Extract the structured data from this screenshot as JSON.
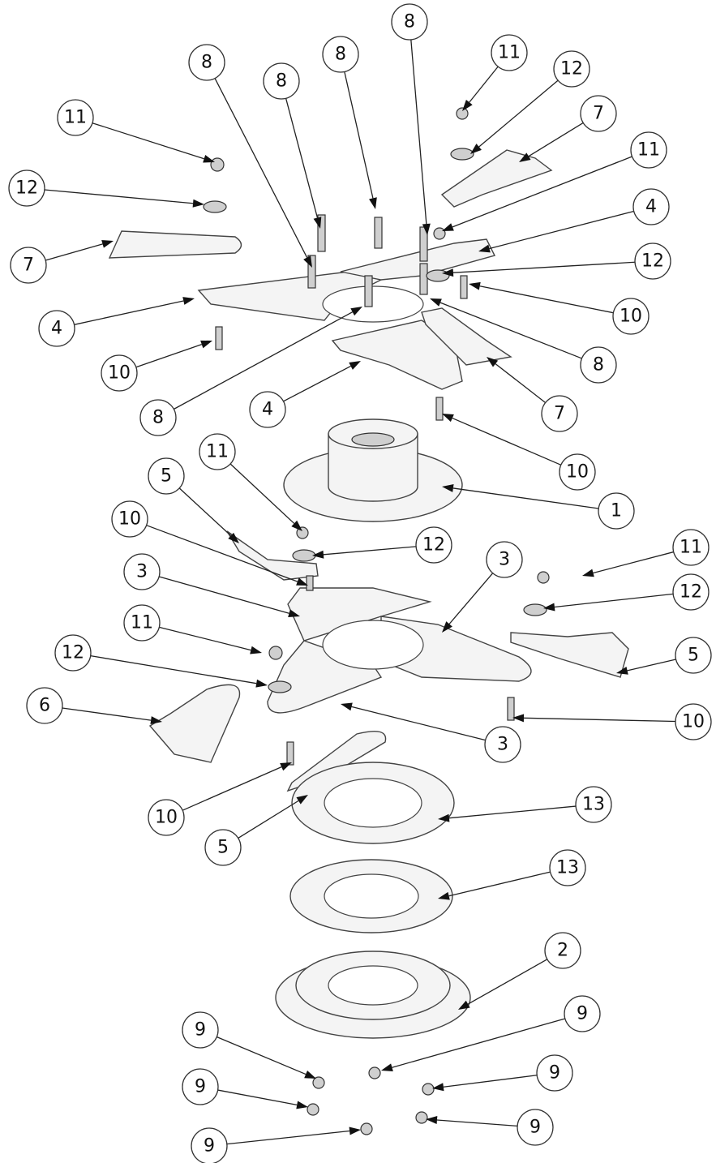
{
  "callouts": [
    "8",
    "8",
    "8",
    "8",
    "11",
    "12",
    "7",
    "11",
    "11",
    "12",
    "4",
    "12",
    "7",
    "10",
    "4",
    "10",
    "8",
    "8",
    "4",
    "7",
    "10",
    "11",
    "5",
    "1",
    "10",
    "12",
    "3",
    "3",
    "11",
    "12",
    "11",
    "12",
    "5",
    "6",
    "3",
    "10",
    "10",
    "13",
    "5",
    "13",
    "2",
    "9",
    "9",
    "9",
    "9",
    "9",
    "9"
  ]
}
